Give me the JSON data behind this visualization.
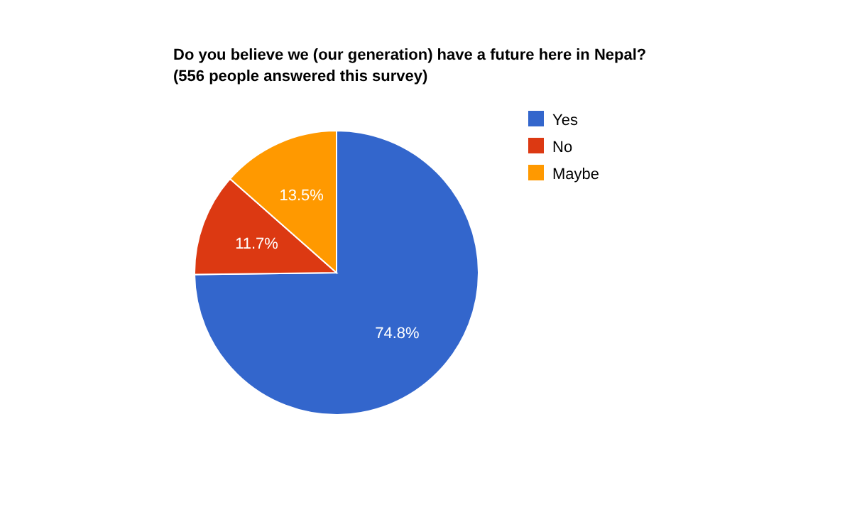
{
  "chart_data": {
    "type": "pie",
    "title": "Do you believe we (our generation) have a future here in Nepal?",
    "subtitle": "(556 people answered this survey)",
    "categories": [
      "Yes",
      "No",
      "Maybe"
    ],
    "values": [
      74.8,
      11.7,
      13.5
    ],
    "colors": [
      "#3366cc",
      "#dc3912",
      "#ff9900"
    ],
    "value_labels": [
      "74.8%",
      "11.7%",
      "13.5%"
    ],
    "legend": "right"
  }
}
